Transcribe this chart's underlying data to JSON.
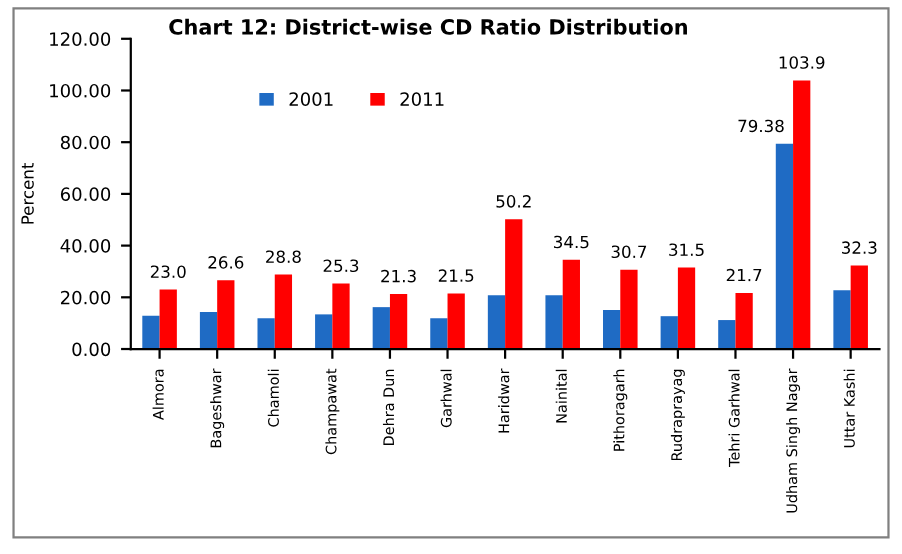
{
  "chart_data": {
    "type": "bar",
    "title": "Chart 12: District-wise CD Ratio Distribution",
    "ylabel": "Percent",
    "categories": [
      "Almora",
      "Bageshwar",
      "Chamoli",
      "Champawat",
      "Dehra Dun",
      "Garhwal",
      "Haridwar",
      "Nainital",
      "Pithoragarh",
      "Rudraprayag",
      "Tehri Garhwal",
      "Udham Singh Nagar",
      "Uttar Kashi"
    ],
    "series": [
      {
        "name": "2001",
        "color": "#1f6bc4",
        "values": [
          12.9,
          14.3,
          11.9,
          13.4,
          16.2,
          11.9,
          20.8,
          20.8,
          15.1,
          12.7,
          11.2,
          79.38,
          22.7
        ],
        "value_labels": [
          null,
          null,
          null,
          null,
          null,
          null,
          null,
          null,
          null,
          null,
          null,
          "79.38",
          null
        ]
      },
      {
        "name": "2011",
        "color": "#ff0000",
        "values": [
          23.0,
          26.6,
          28.8,
          25.3,
          21.3,
          21.5,
          50.2,
          34.5,
          30.7,
          31.5,
          21.7,
          103.9,
          32.3
        ],
        "value_labels": [
          "23.0",
          "26.6",
          "28.8",
          "25.3",
          "21.3",
          "21.5",
          "50.2",
          "34.5",
          "30.7",
          "31.5",
          "21.7",
          "103.9",
          "32.3"
        ]
      }
    ],
    "ylim": [
      0,
      120
    ],
    "yticks": [
      {
        "value": 0,
        "label": "0.00"
      },
      {
        "value": 20,
        "label": "20.00"
      },
      {
        "value": 40,
        "label": "40.00"
      },
      {
        "value": 60,
        "label": "60.00"
      },
      {
        "value": 80,
        "label": "80.00"
      },
      {
        "value": 100,
        "label": "100.00"
      },
      {
        "value": 120,
        "label": "120.00"
      }
    ],
    "grid": false,
    "legend": "top left"
  }
}
